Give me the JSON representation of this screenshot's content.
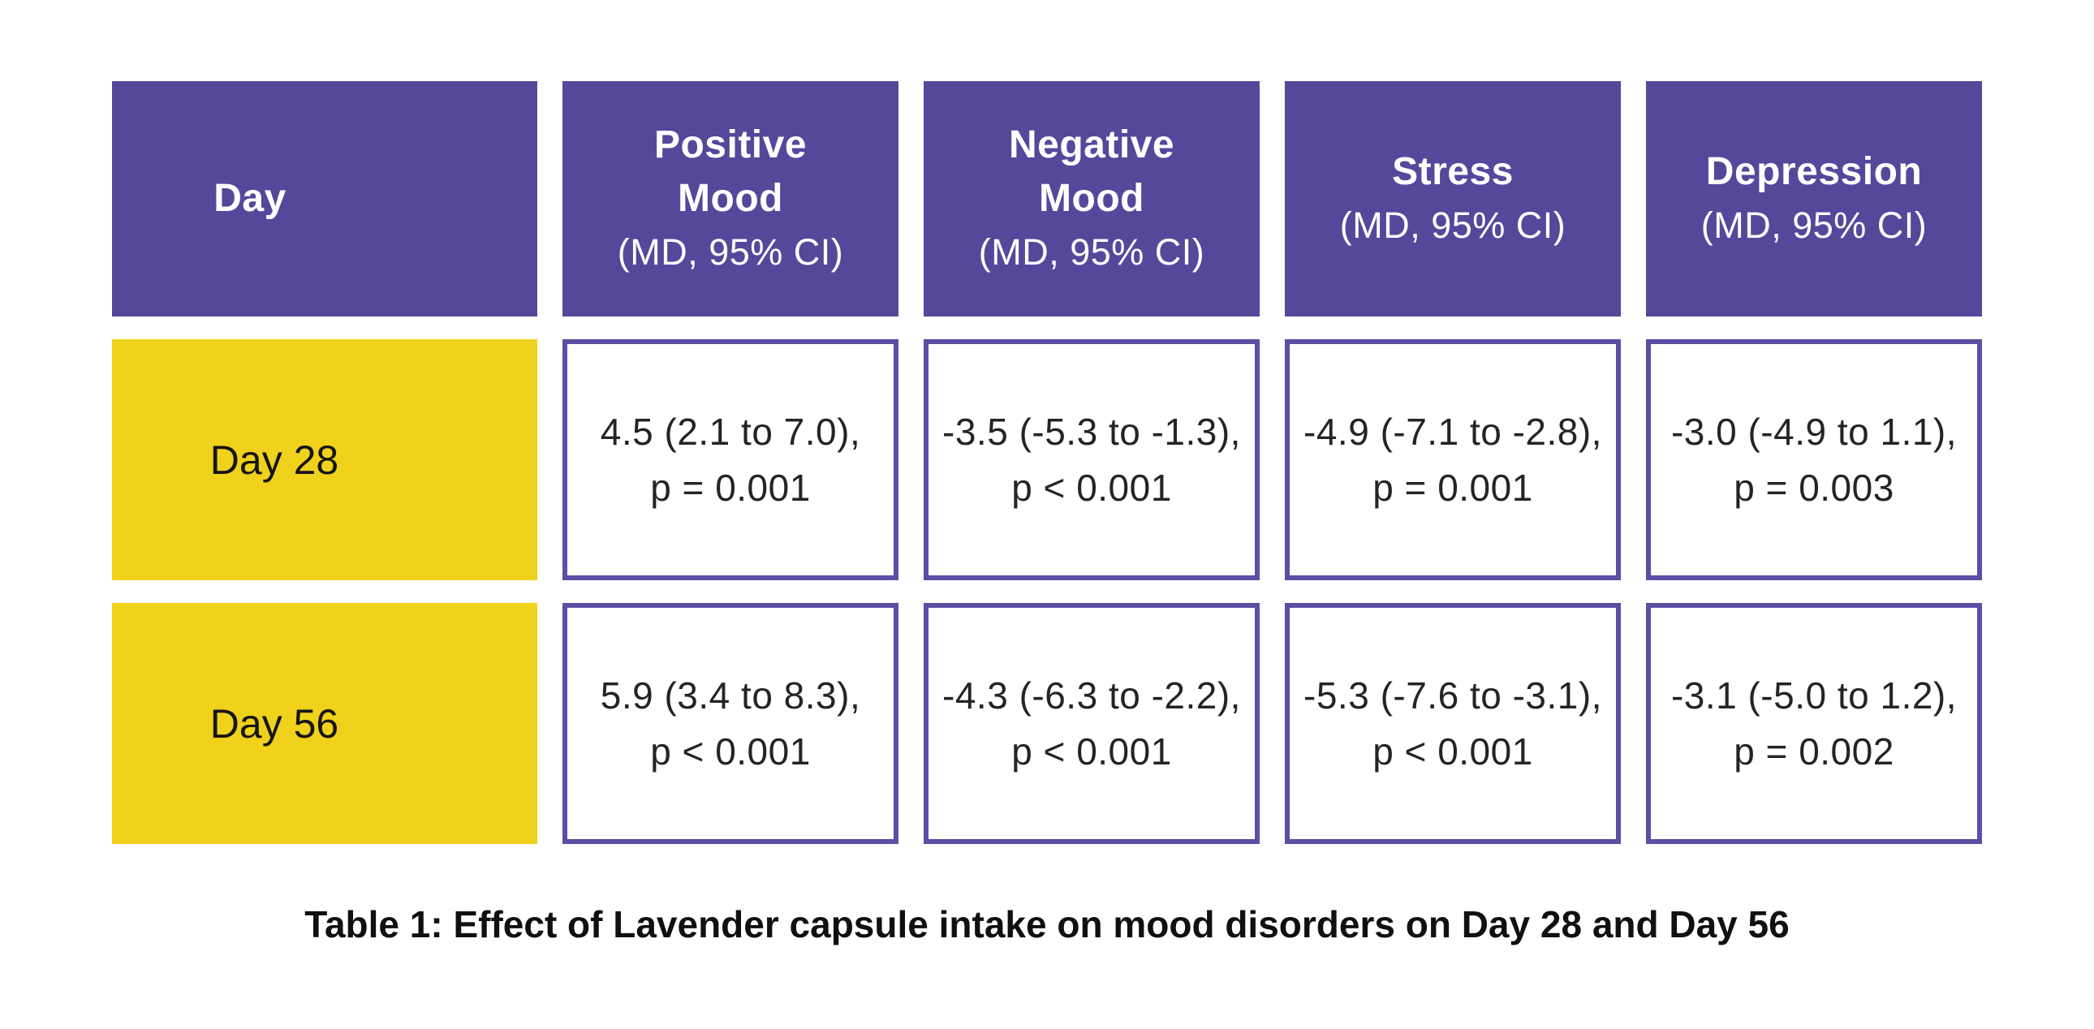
{
  "colors": {
    "header_purple": "#55489B",
    "cell_border_purple": "#5A4FA3",
    "row_label_yellow": "#F0D11C",
    "header_text": "#FFFFFF",
    "body_text": "#242424",
    "caption_text": "#101010",
    "background": "#FFFFFF"
  },
  "table": {
    "header": [
      {
        "label": "Day",
        "sublabel": ""
      },
      {
        "label": "Positive\nMood",
        "sublabel": "(MD, 95% CI)"
      },
      {
        "label": "Negative\nMood",
        "sublabel": "(MD, 95% CI)"
      },
      {
        "label": "Stress",
        "sublabel": "(MD, 95% CI)"
      },
      {
        "label": "Depression",
        "sublabel": "(MD, 95% CI)"
      }
    ],
    "rows": [
      {
        "day": "Day 28",
        "cells": [
          {
            "line1": "4.5 (2.1 to 7.0),",
            "line2": "p = 0.001"
          },
          {
            "line1": "-3.5 (-5.3 to -1.3),",
            "line2": "p < 0.001"
          },
          {
            "line1": "-4.9 (-7.1 to -2.8),",
            "line2": "p = 0.001"
          },
          {
            "line1": "-3.0 (-4.9 to 1.1),",
            "line2": "p = 0.003"
          }
        ]
      },
      {
        "day": "Day 56",
        "cells": [
          {
            "line1": "5.9 (3.4 to 8.3),",
            "line2": "p < 0.001"
          },
          {
            "line1": "-4.3 (-6.3 to -2.2),",
            "line2": "p < 0.001"
          },
          {
            "line1": "-5.3 (-7.6 to -3.1),",
            "line2": "p < 0.001"
          },
          {
            "line1": "-3.1 (-5.0 to 1.2),",
            "line2": "p = 0.002"
          }
        ]
      }
    ]
  },
  "caption": "Table 1: Effect of Lavender capsule intake on mood disorders on Day 28 and Day 56",
  "chart_data": {
    "type": "table",
    "title": "Table 1: Effect of Lavender capsule intake on mood disorders on Day 28 and Day 56",
    "columns": [
      "Day",
      "Positive Mood (MD, 95% CI)",
      "Negative Mood (MD, 95% CI)",
      "Stress (MD, 95% CI)",
      "Depression (MD, 95% CI)"
    ],
    "rows": [
      [
        "Day 28",
        "4.5 (2.1 to 7.0), p = 0.001",
        "-3.5 (-5.3 to -1.3), p < 0.001",
        "-4.9 (-7.1 to -2.8), p = 0.001",
        "-3.0 (-4.9 to 1.1), p = 0.003"
      ],
      [
        "Day 56",
        "5.9 (3.4 to 8.3), p < 0.001",
        "-4.3 (-6.3 to -2.2), p < 0.001",
        "-5.3 (-7.6 to -3.1), p < 0.001",
        "-3.1 (-5.0 to 1.2), p = 0.002"
      ]
    ]
  }
}
